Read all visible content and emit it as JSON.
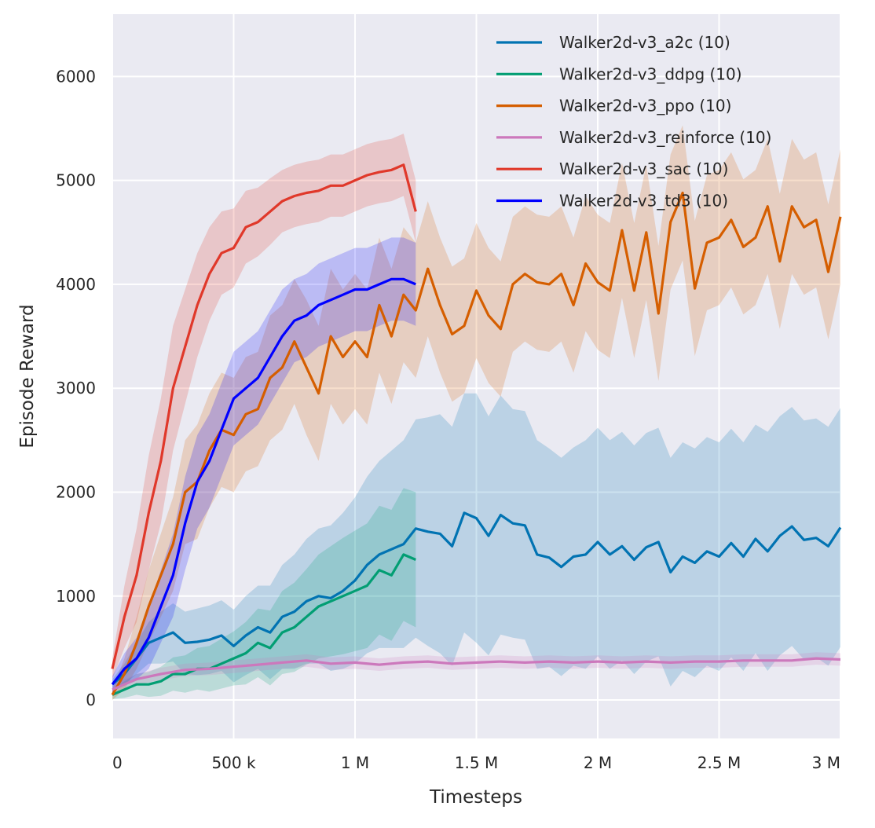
{
  "chart_data": {
    "type": "line",
    "title": "",
    "xlabel": "Timesteps",
    "ylabel": "Episode Reward",
    "xlim": [
      0,
      3000000
    ],
    "ylim": [
      -370,
      6600
    ],
    "grid": true,
    "legend_position": "top-right",
    "xticks": [
      0,
      500000,
      1000000,
      1500000,
      2000000,
      2500000,
      3000000
    ],
    "xticklabels": [
      "0",
      "500 k",
      "1 M",
      "1.5 M",
      "2 M",
      "2.5 M",
      "3 M"
    ],
    "yticks": [
      0,
      1000,
      2000,
      3000,
      4000,
      5000,
      6000
    ],
    "yticklabels": [
      "0",
      "1000",
      "2000",
      "3000",
      "4000",
      "5000",
      "6000"
    ],
    "background_color": "#eaeaf2",
    "series": [
      {
        "name": "Walker2d-v3_a2c (10)",
        "color": "#0173b2",
        "x_millions": [
          0,
          0.05,
          0.1,
          0.15,
          0.2,
          0.25,
          0.3,
          0.35,
          0.4,
          0.45,
          0.5,
          0.55,
          0.6,
          0.65,
          0.7,
          0.75,
          0.8,
          0.85,
          0.9,
          0.95,
          1.0,
          1.05,
          1.1,
          1.15,
          1.2,
          1.25,
          1.3,
          1.35,
          1.4,
          1.45,
          1.5,
          1.55,
          1.6,
          1.65,
          1.7,
          1.75,
          1.8,
          1.85,
          1.9,
          1.95,
          2.0,
          2.05,
          2.1,
          2.15,
          2.2,
          2.25,
          2.3,
          2.35,
          2.4,
          2.45,
          2.5,
          2.55,
          2.6,
          2.65,
          2.7,
          2.75,
          2.8,
          2.85,
          2.9,
          2.95,
          3.0
        ],
        "mean": [
          150,
          250,
          400,
          550,
          600,
          650,
          550,
          560,
          580,
          620,
          520,
          620,
          700,
          650,
          800,
          850,
          950,
          1000,
          980,
          1050,
          1150,
          1300,
          1400,
          1450,
          1500,
          1650,
          1620,
          1600,
          1480,
          1800,
          1750,
          1580,
          1780,
          1700,
          1680,
          1400,
          1370,
          1280,
          1380,
          1400,
          1520,
          1400,
          1480,
          1350,
          1470,
          1520,
          1230,
          1380,
          1320,
          1430,
          1380,
          1510,
          1380,
          1550,
          1430,
          1580,
          1670,
          1540,
          1560,
          1480,
          1660
        ],
        "spread": [
          50,
          100,
          150,
          200,
          250,
          280,
          300,
          320,
          330,
          340,
          350,
          380,
          400,
          450,
          500,
          550,
          600,
          650,
          700,
          750,
          800,
          850,
          900,
          950,
          1000,
          1050,
          1100,
          1150,
          1150,
          1150,
          1200,
          1150,
          1150,
          1100,
          1100,
          1100,
          1050,
          1050,
          1050,
          1100,
          1100,
          1100,
          1100,
          1100,
          1100,
          1100,
          1100,
          1100,
          1100,
          1100,
          1100,
          1100,
          1100,
          1100,
          1150,
          1150,
          1150,
          1150,
          1150,
          1150,
          1150
        ]
      },
      {
        "name": "Walker2d-v3_ddpg (10)",
        "color": "#029e73",
        "x_millions": [
          0,
          0.05,
          0.1,
          0.15,
          0.2,
          0.25,
          0.3,
          0.35,
          0.4,
          0.45,
          0.5,
          0.55,
          0.6,
          0.65,
          0.7,
          0.75,
          0.8,
          0.85,
          0.9,
          0.95,
          1.0,
          1.05,
          1.1,
          1.15,
          1.2,
          1.25
        ],
        "mean": [
          50,
          100,
          150,
          150,
          180,
          250,
          250,
          300,
          300,
          350,
          400,
          450,
          550,
          500,
          650,
          700,
          800,
          900,
          950,
          1000,
          1050,
          1100,
          1250,
          1200,
          1400,
          1350
        ],
        "spread": [
          40,
          80,
          100,
          120,
          140,
          160,
          180,
          200,
          220,
          240,
          260,
          300,
          330,
          360,
          400,
          430,
          460,
          500,
          530,
          560,
          580,
          600,
          620,
          630,
          640,
          650
        ]
      },
      {
        "name": "Walker2d-v3_ppo (10)",
        "color": "#d55e00",
        "x_millions": [
          0,
          0.05,
          0.1,
          0.15,
          0.2,
          0.25,
          0.3,
          0.35,
          0.4,
          0.45,
          0.5,
          0.55,
          0.6,
          0.65,
          0.7,
          0.75,
          0.8,
          0.85,
          0.9,
          0.95,
          1.0,
          1.05,
          1.1,
          1.15,
          1.2,
          1.25,
          1.3,
          1.35,
          1.4,
          1.45,
          1.5,
          1.55,
          1.6,
          1.65,
          1.7,
          1.75,
          1.8,
          1.85,
          1.9,
          1.95,
          2.0,
          2.05,
          2.1,
          2.15,
          2.2,
          2.25,
          2.3,
          2.35,
          2.4,
          2.45,
          2.5,
          2.55,
          2.6,
          2.65,
          2.7,
          2.75,
          2.8,
          2.85,
          2.9,
          2.95,
          3.0
        ],
        "mean": [
          50,
          250,
          550,
          900,
          1200,
          1500,
          2000,
          2100,
          2400,
          2600,
          2550,
          2750,
          2800,
          3100,
          3200,
          3450,
          3200,
          2950,
          3500,
          3300,
          3450,
          3300,
          3800,
          3500,
          3900,
          3750,
          4150,
          3800,
          3520,
          3600,
          3940,
          3700,
          3570,
          4000,
          4100,
          4020,
          4000,
          4100,
          3800,
          4200,
          4020,
          3940,
          4520,
          3940,
          4500,
          3720,
          4600,
          4880,
          3960,
          4400,
          4450,
          4620,
          4360,
          4450,
          4750,
          4220,
          4750,
          4550,
          4620,
          4120,
          4650
        ],
        "spread": [
          50,
          150,
          250,
          350,
          400,
          450,
          500,
          550,
          550,
          550,
          550,
          550,
          550,
          600,
          600,
          600,
          650,
          650,
          650,
          650,
          650,
          650,
          650,
          650,
          650,
          650,
          650,
          650,
          650,
          650,
          650,
          650,
          650,
          650,
          650,
          650,
          650,
          650,
          650,
          650,
          650,
          650,
          650,
          650,
          650,
          650,
          650,
          650,
          650,
          650,
          650,
          650,
          650,
          650,
          650,
          650,
          650,
          650,
          650,
          650,
          650
        ]
      },
      {
        "name": "Walker2d-v3_reinforce (10)",
        "color": "#cc78bc",
        "x_millions": [
          0,
          0.1,
          0.2,
          0.3,
          0.4,
          0.5,
          0.6,
          0.7,
          0.8,
          0.9,
          1.0,
          1.1,
          1.2,
          1.3,
          1.4,
          1.5,
          1.6,
          1.7,
          1.8,
          1.9,
          2.0,
          2.1,
          2.2,
          2.3,
          2.4,
          2.5,
          2.6,
          2.7,
          2.8,
          2.9,
          3.0
        ],
        "mean": [
          100,
          200,
          250,
          290,
          300,
          320,
          340,
          360,
          380,
          350,
          360,
          340,
          360,
          370,
          350,
          360,
          370,
          360,
          370,
          360,
          370,
          360,
          370,
          360,
          370,
          370,
          380,
          380,
          380,
          400,
          390
        ],
        "spread": [
          40,
          50,
          60,
          60,
          60,
          60,
          60,
          60,
          60,
          60,
          60,
          60,
          60,
          60,
          60,
          60,
          60,
          60,
          60,
          60,
          60,
          60,
          60,
          60,
          60,
          60,
          60,
          60,
          60,
          60,
          60
        ]
      },
      {
        "name": "Walker2d-v3_sac (10)",
        "color": "#e0382a",
        "x_millions": [
          0,
          0.05,
          0.1,
          0.15,
          0.2,
          0.25,
          0.3,
          0.35,
          0.4,
          0.45,
          0.5,
          0.55,
          0.6,
          0.65,
          0.7,
          0.75,
          0.8,
          0.85,
          0.9,
          0.95,
          1.0,
          1.05,
          1.1,
          1.15,
          1.2,
          1.25
        ],
        "mean": [
          300,
          800,
          1200,
          1800,
          2300,
          3000,
          3400,
          3800,
          4100,
          4300,
          4350,
          4550,
          4600,
          4700,
          4800,
          4850,
          4880,
          4900,
          4950,
          4950,
          5000,
          5050,
          5080,
          5100,
          5150,
          4700
        ],
        "spread": [
          100,
          300,
          450,
          550,
          600,
          600,
          550,
          500,
          450,
          400,
          380,
          350,
          330,
          320,
          300,
          300,
          300,
          300,
          300,
          300,
          300,
          300,
          300,
          300,
          300,
          300
        ]
      },
      {
        "name": "Walker2d-v3_td3 (10)",
        "color": "#0000ff",
        "x_millions": [
          0,
          0.05,
          0.1,
          0.15,
          0.2,
          0.25,
          0.3,
          0.35,
          0.4,
          0.45,
          0.5,
          0.55,
          0.6,
          0.65,
          0.7,
          0.75,
          0.8,
          0.85,
          0.9,
          0.95,
          1.0,
          1.05,
          1.1,
          1.15,
          1.2,
          1.25
        ],
        "mean": [
          150,
          300,
          400,
          600,
          900,
          1200,
          1700,
          2100,
          2300,
          2600,
          2900,
          3000,
          3100,
          3300,
          3500,
          3650,
          3700,
          3800,
          3850,
          3900,
          3950,
          3950,
          4000,
          4050,
          4050,
          4000
        ],
        "spread": [
          80,
          150,
          200,
          300,
          350,
          400,
          450,
          450,
          450,
          450,
          450,
          450,
          450,
          450,
          450,
          400,
          400,
          400,
          400,
          400,
          400,
          400,
          400,
          400,
          400,
          400
        ]
      }
    ]
  }
}
